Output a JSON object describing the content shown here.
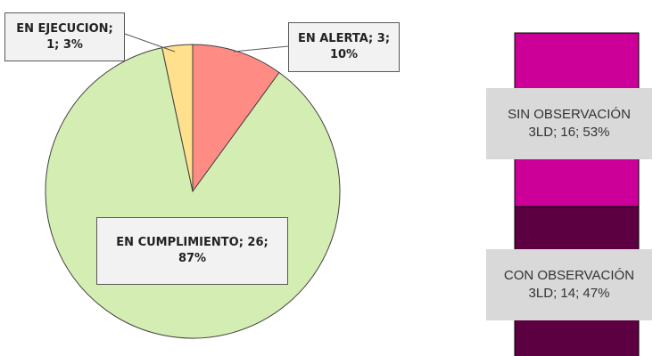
{
  "chart_data": [
    {
      "type": "pie",
      "values": [
        3,
        26,
        1
      ],
      "value_labels": [
        "EN ALERTA; 3; 10%",
        "EN CUMPLIMIENTO; 26; 87%",
        "EN EJECUCION; 1; 3%"
      ],
      "colors": [
        "#ff8c84",
        "#d4edb3",
        "#ffe08c"
      ]
    },
    {
      "type": "stacked_bar",
      "ylim": [
        0,
        30
      ],
      "series": [
        {
          "name": "CON OBSERVACIÓN 3LD",
          "color": "#5c0041",
          "values": [
            14
          ],
          "value_labels": [
            "CON OBSERVACIÓN 3LD; 14; 47%"
          ]
        },
        {
          "name": "SIN OBSERVACIÓN 3LD",
          "color": "#cc0099",
          "values": [
            16
          ],
          "value_labels": [
            "SIN OBSERVACIÓN 3LD; 16; 53%"
          ]
        }
      ]
    }
  ]
}
